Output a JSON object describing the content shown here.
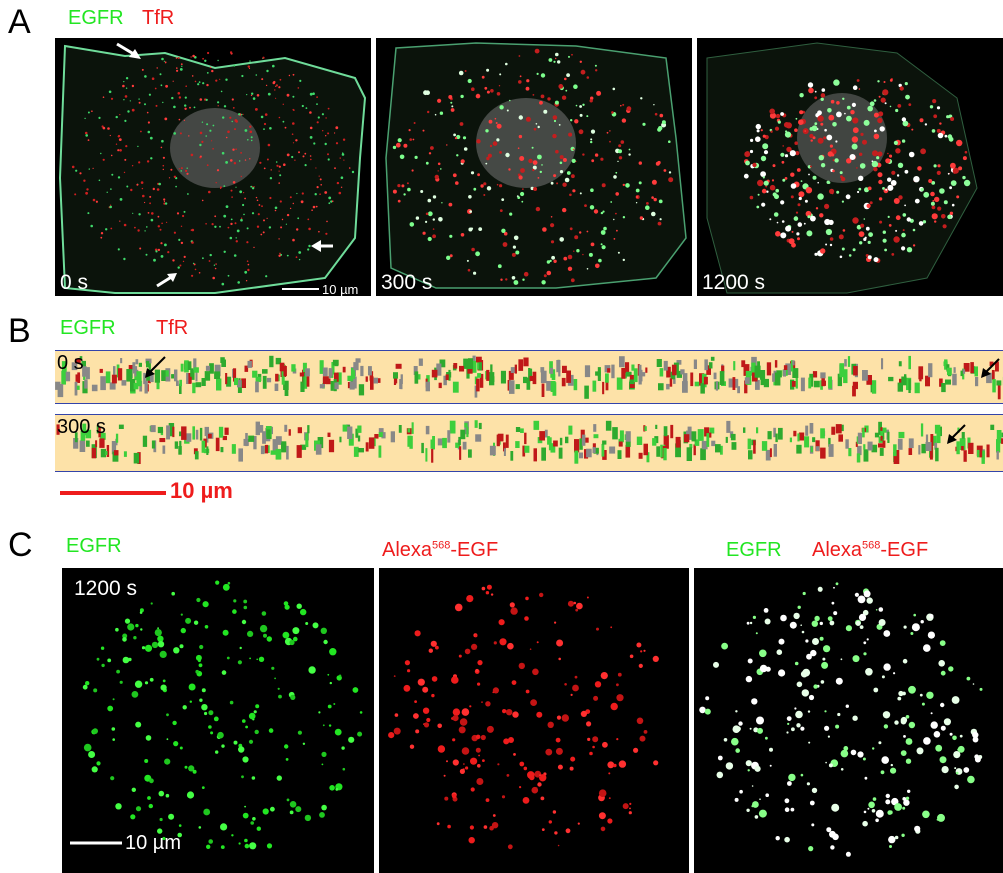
{
  "panel_a": {
    "letter": "A",
    "channel1": "EGFR",
    "channel2": "TfR",
    "frames": [
      {
        "time": "0 s"
      },
      {
        "time": "300 s"
      },
      {
        "time": "1200 s"
      }
    ],
    "scale_label": "10 µm"
  },
  "panel_b": {
    "letter": "B",
    "channel1": "EGFR",
    "channel2": "TfR",
    "rows": [
      {
        "time": "0 s"
      },
      {
        "time": "300 s"
      }
    ],
    "scale_label": "10 µm"
  },
  "panel_c": {
    "letter": "C",
    "col1_label": "EGFR",
    "col2_label_main": "Alexa",
    "col2_label_sup": "568",
    "col2_label_tail": "-EGF",
    "col3_label_green": "EGFR",
    "col3_label_main": "Alexa",
    "col3_label_sup": "568",
    "col3_label_tail": "-EGF",
    "time": "1200 s",
    "scale_label": "10 µm"
  },
  "colors": {
    "green": "#22e622",
    "red": "#ee1c1c",
    "strip_bg": "#fde2a8"
  }
}
